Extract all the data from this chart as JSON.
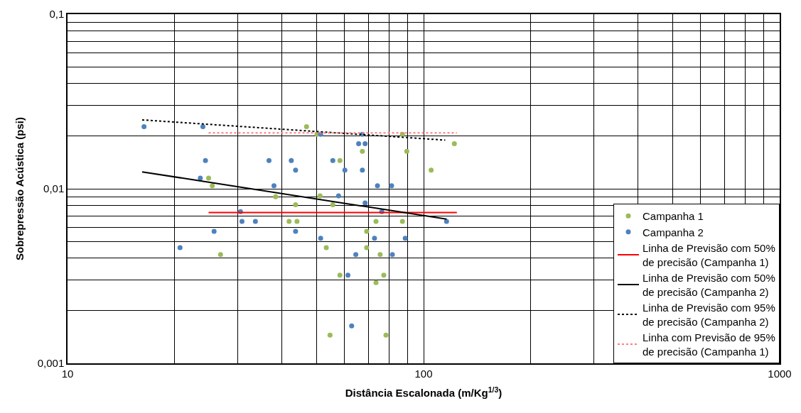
{
  "chart_data": {
    "type": "scatter",
    "xlabel": "Distância Escalonada (m/Kg$^{1/3}$)",
    "ylabel": "Sobrepressão Acústica (psi)",
    "log": "xy",
    "xlim": [
      10,
      1000
    ],
    "ylim": [
      0.001,
      0.1
    ],
    "xticks": [
      10,
      100,
      1000
    ],
    "yticks": [
      {
        "value": 0.001,
        "label": "0,001"
      },
      {
        "value": 0.01,
        "label": "0,01"
      },
      {
        "value": 0.1,
        "label": "0,1"
      }
    ],
    "grid": true,
    "legend": "bottom right",
    "series": [
      {
        "name": "Campanha 1",
        "marker": "circle",
        "color": "#9bbb59",
        "x": [
          24.9,
          25.5,
          38.4,
          43.7,
          41.9,
          44.1,
          26.9,
          46.9,
          50.2,
          87.2,
          122,
          89.7,
          67.3,
          58.2,
          105,
          51.2,
          55.6,
          73.5,
          87.2,
          69.2,
          53.3,
          69.2,
          75.5,
          58.2,
          77.3,
          73.5,
          54.6,
          78.4
        ],
        "values": [
          0.0115,
          0.0104,
          0.009,
          0.0081,
          0.0065,
          0.0065,
          0.0042,
          0.0227,
          0.0205,
          0.0205,
          0.0181,
          0.0164,
          0.0164,
          0.0145,
          0.0128,
          0.0091,
          0.0081,
          0.0065,
          0.0065,
          0.0057,
          0.0046,
          0.0046,
          0.0042,
          0.0032,
          0.0032,
          0.0029,
          0.00145,
          0.00145
        ]
      },
      {
        "name": "Campanha 2",
        "marker": "circle",
        "color": "#4f81bd",
        "x": [
          16.4,
          24.0,
          24.4,
          23.6,
          36.8,
          42.5,
          43.7,
          38.0,
          30.6,
          30.9,
          33.7,
          43.7,
          25.8,
          20.7,
          51.4,
          67.3,
          65.7,
          68.5,
          55.6,
          60.1,
          67.3,
          74.2,
          81.3,
          57.7,
          68.5,
          76.3,
          116,
          51.4,
          72.8,
          88.8,
          64.5,
          81.7,
          61.3,
          62.8
        ],
        "values": [
          0.0227,
          0.0227,
          0.0145,
          0.0115,
          0.0145,
          0.0145,
          0.0128,
          0.0104,
          0.0074,
          0.0065,
          0.0065,
          0.0057,
          0.0057,
          0.0046,
          0.0205,
          0.0205,
          0.0181,
          0.0181,
          0.0145,
          0.0128,
          0.0128,
          0.0104,
          0.0104,
          0.0091,
          0.0083,
          0.0074,
          0.0065,
          0.0052,
          0.0052,
          0.0052,
          0.0042,
          0.0042,
          0.0032,
          0.00164
        ]
      },
      {
        "name": "Linha de Previsão com 50% de precisão (Campanha 1)",
        "type": "line",
        "line_style": "solid",
        "color": "#ff0000",
        "x": [
          24.9,
          124
        ],
        "values": [
          0.0073,
          0.0073
        ]
      },
      {
        "name": "Linha de Previsão com 50% de precisão (Campanha 2)",
        "type": "line",
        "line_style": "solid",
        "color": "#000000",
        "x": [
          16.2,
          116
        ],
        "values": [
          0.0125,
          0.0067
        ]
      },
      {
        "name": "Linha de Previsão com 95% de precisão (Campanha 2)",
        "type": "line",
        "line_style": "dotted",
        "color": "#000000",
        "x": [
          16.2,
          115
        ],
        "values": [
          0.0248,
          0.019
        ]
      },
      {
        "name": "Linha com Previsão de 95% de precisão (Campanha 1)",
        "type": "line",
        "line_style": "dotted",
        "color": "#ff7c80",
        "x": [
          24.9,
          124
        ],
        "values": [
          0.0209,
          0.0209
        ]
      }
    ]
  }
}
